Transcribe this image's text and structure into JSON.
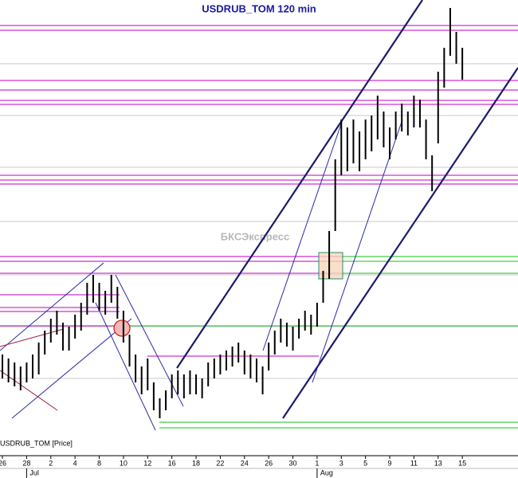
{
  "chart_data": {
    "type": "range-bar",
    "title": "USDRUB_TOM 120 min",
    "watermark": "БКСЭкспресс",
    "legend": "USDRUB_TOM [Price]",
    "color": "#000000",
    "xlim": [
      -0.2,
      42.6
    ],
    "ylim": [
      0,
      565
    ],
    "xticks": [
      {
        "value": 0,
        "label": "26"
      },
      {
        "value": 2,
        "label": "28"
      },
      {
        "value": 4,
        "label": "2"
      },
      {
        "value": 6,
        "label": "4"
      },
      {
        "value": 8,
        "label": "8"
      },
      {
        "value": 10,
        "label": "10"
      },
      {
        "value": 12,
        "label": "12"
      },
      {
        "value": 14,
        "label": "16"
      },
      {
        "value": 16,
        "label": "18"
      },
      {
        "value": 18,
        "label": "22"
      },
      {
        "value": 20,
        "label": "24"
      },
      {
        "value": 22,
        "label": "26"
      },
      {
        "value": 24,
        "label": "30"
      },
      {
        "value": 26,
        "label": "1"
      },
      {
        "value": 28,
        "label": "3"
      },
      {
        "value": 30,
        "label": "5"
      },
      {
        "value": 32,
        "label": "9"
      },
      {
        "value": 34,
        "label": "11"
      },
      {
        "value": 36,
        "label": "13"
      },
      {
        "value": 38,
        "label": "15"
      }
    ],
    "months": [
      {
        "value": 2,
        "label": "Jul"
      },
      {
        "value": 26,
        "label": "Aug"
      }
    ],
    "x": [
      0,
      0.5,
      1,
      1.5,
      2,
      2.5,
      3,
      3.5,
      4,
      4.5,
      5,
      5.5,
      6,
      6.5,
      7,
      7.5,
      8,
      8.5,
      9,
      9.5,
      10,
      10.5,
      11,
      11.5,
      12,
      12.5,
      13,
      13.5,
      14,
      14.5,
      15,
      15.5,
      16,
      16.5,
      17,
      17.5,
      18,
      18.5,
      19,
      19.5,
      20,
      20.5,
      21,
      21.5,
      22,
      22.5,
      23,
      23.5,
      24,
      24.5,
      25,
      25.5,
      26,
      26.5,
      27,
      27.5,
      28,
      28.5,
      29,
      29.5,
      30,
      30.5,
      31,
      31.5,
      32,
      32.5,
      33,
      33.5,
      34,
      34.5,
      35,
      35.5,
      36,
      36.5,
      37,
      37.5,
      38
    ],
    "high": [
      120,
      115,
      110,
      105,
      110,
      120,
      135,
      150,
      165,
      175,
      160,
      155,
      170,
      185,
      210,
      220,
      210,
      200,
      220,
      205,
      175,
      145,
      120,
      105,
      115,
      85,
      65,
      75,
      95,
      100,
      95,
      100,
      95,
      90,
      110,
      115,
      120,
      125,
      130,
      135,
      125,
      120,
      115,
      105,
      135,
      150,
      165,
      160,
      155,
      165,
      175,
      170,
      185,
      225,
      275,
      365,
      415,
      405,
      415,
      400,
      415,
      420,
      445,
      425,
      405,
      425,
      435,
      425,
      445,
      440,
      415,
      370,
      475,
      505,
      555,
      525,
      505
    ],
    "low": [
      90,
      85,
      80,
      75,
      85,
      90,
      95,
      120,
      135,
      145,
      125,
      125,
      140,
      150,
      170,
      185,
      175,
      170,
      185,
      165,
      135,
      105,
      85,
      70,
      75,
      50,
      40,
      50,
      65,
      70,
      65,
      70,
      70,
      65,
      80,
      90,
      95,
      100,
      105,
      110,
      95,
      90,
      85,
      70,
      100,
      120,
      135,
      130,
      125,
      140,
      150,
      145,
      155,
      185,
      215,
      275,
      345,
      350,
      360,
      350,
      365,
      375,
      390,
      380,
      365,
      390,
      400,
      395,
      405,
      405,
      365,
      325,
      385,
      455,
      495,
      485,
      465
    ]
  }
}
